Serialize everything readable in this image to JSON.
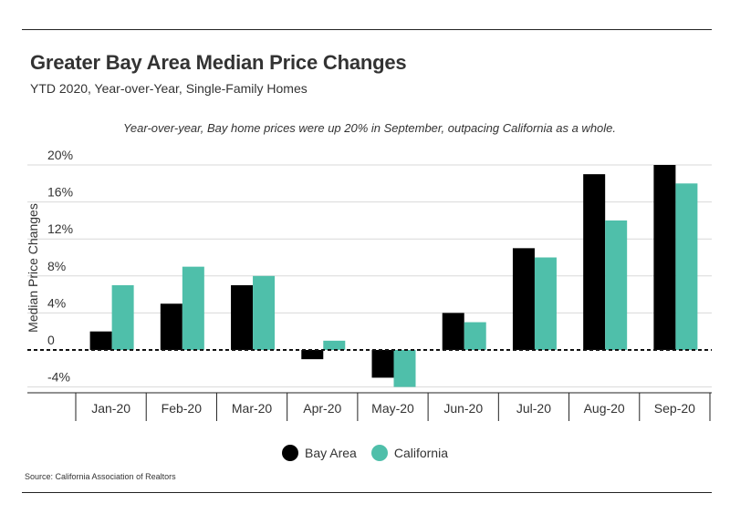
{
  "title": "Greater Bay Area Median Price Changes",
  "subtitle": "YTD 2020, Year-over-Year, Single-Family Homes",
  "annotation": "Year-over-year, Bay home prices were up 20% in September, outpacing California as a whole.",
  "source": "Source:  California Association of Realtors",
  "colors": {
    "bay_area": "#000000",
    "california": "#4fbfaa",
    "grid": "#d9d9d9",
    "axis": "#222222"
  },
  "legend": [
    {
      "label": "Bay Area",
      "color": "#000000"
    },
    {
      "label": "California",
      "color": "#4fbfaa"
    }
  ],
  "chart_data": {
    "type": "bar",
    "ylabel": "Median Price Changes",
    "xlabel": "",
    "categories": [
      "Jan-20",
      "Feb-20",
      "Mar-20",
      "Apr-20",
      "May-20",
      "Jun-20",
      "Jul-20",
      "Aug-20",
      "Sep-20"
    ],
    "series": [
      {
        "name": "Bay Area",
        "values": [
          2,
          5,
          7,
          -1,
          -3,
          4,
          11,
          19,
          20
        ]
      },
      {
        "name": "California",
        "values": [
          7,
          9,
          8,
          1,
          -4,
          3,
          10,
          14,
          18
        ]
      }
    ],
    "ylim": [
      -4.5,
      21
    ],
    "yticks": [
      20,
      16,
      12,
      8,
      4,
      0,
      -4
    ],
    "ytick_labels": [
      "20%",
      "16%",
      "12%",
      "8%",
      "4%",
      "0",
      "-4%"
    ],
    "grid": true,
    "legend_position": "bottom"
  }
}
